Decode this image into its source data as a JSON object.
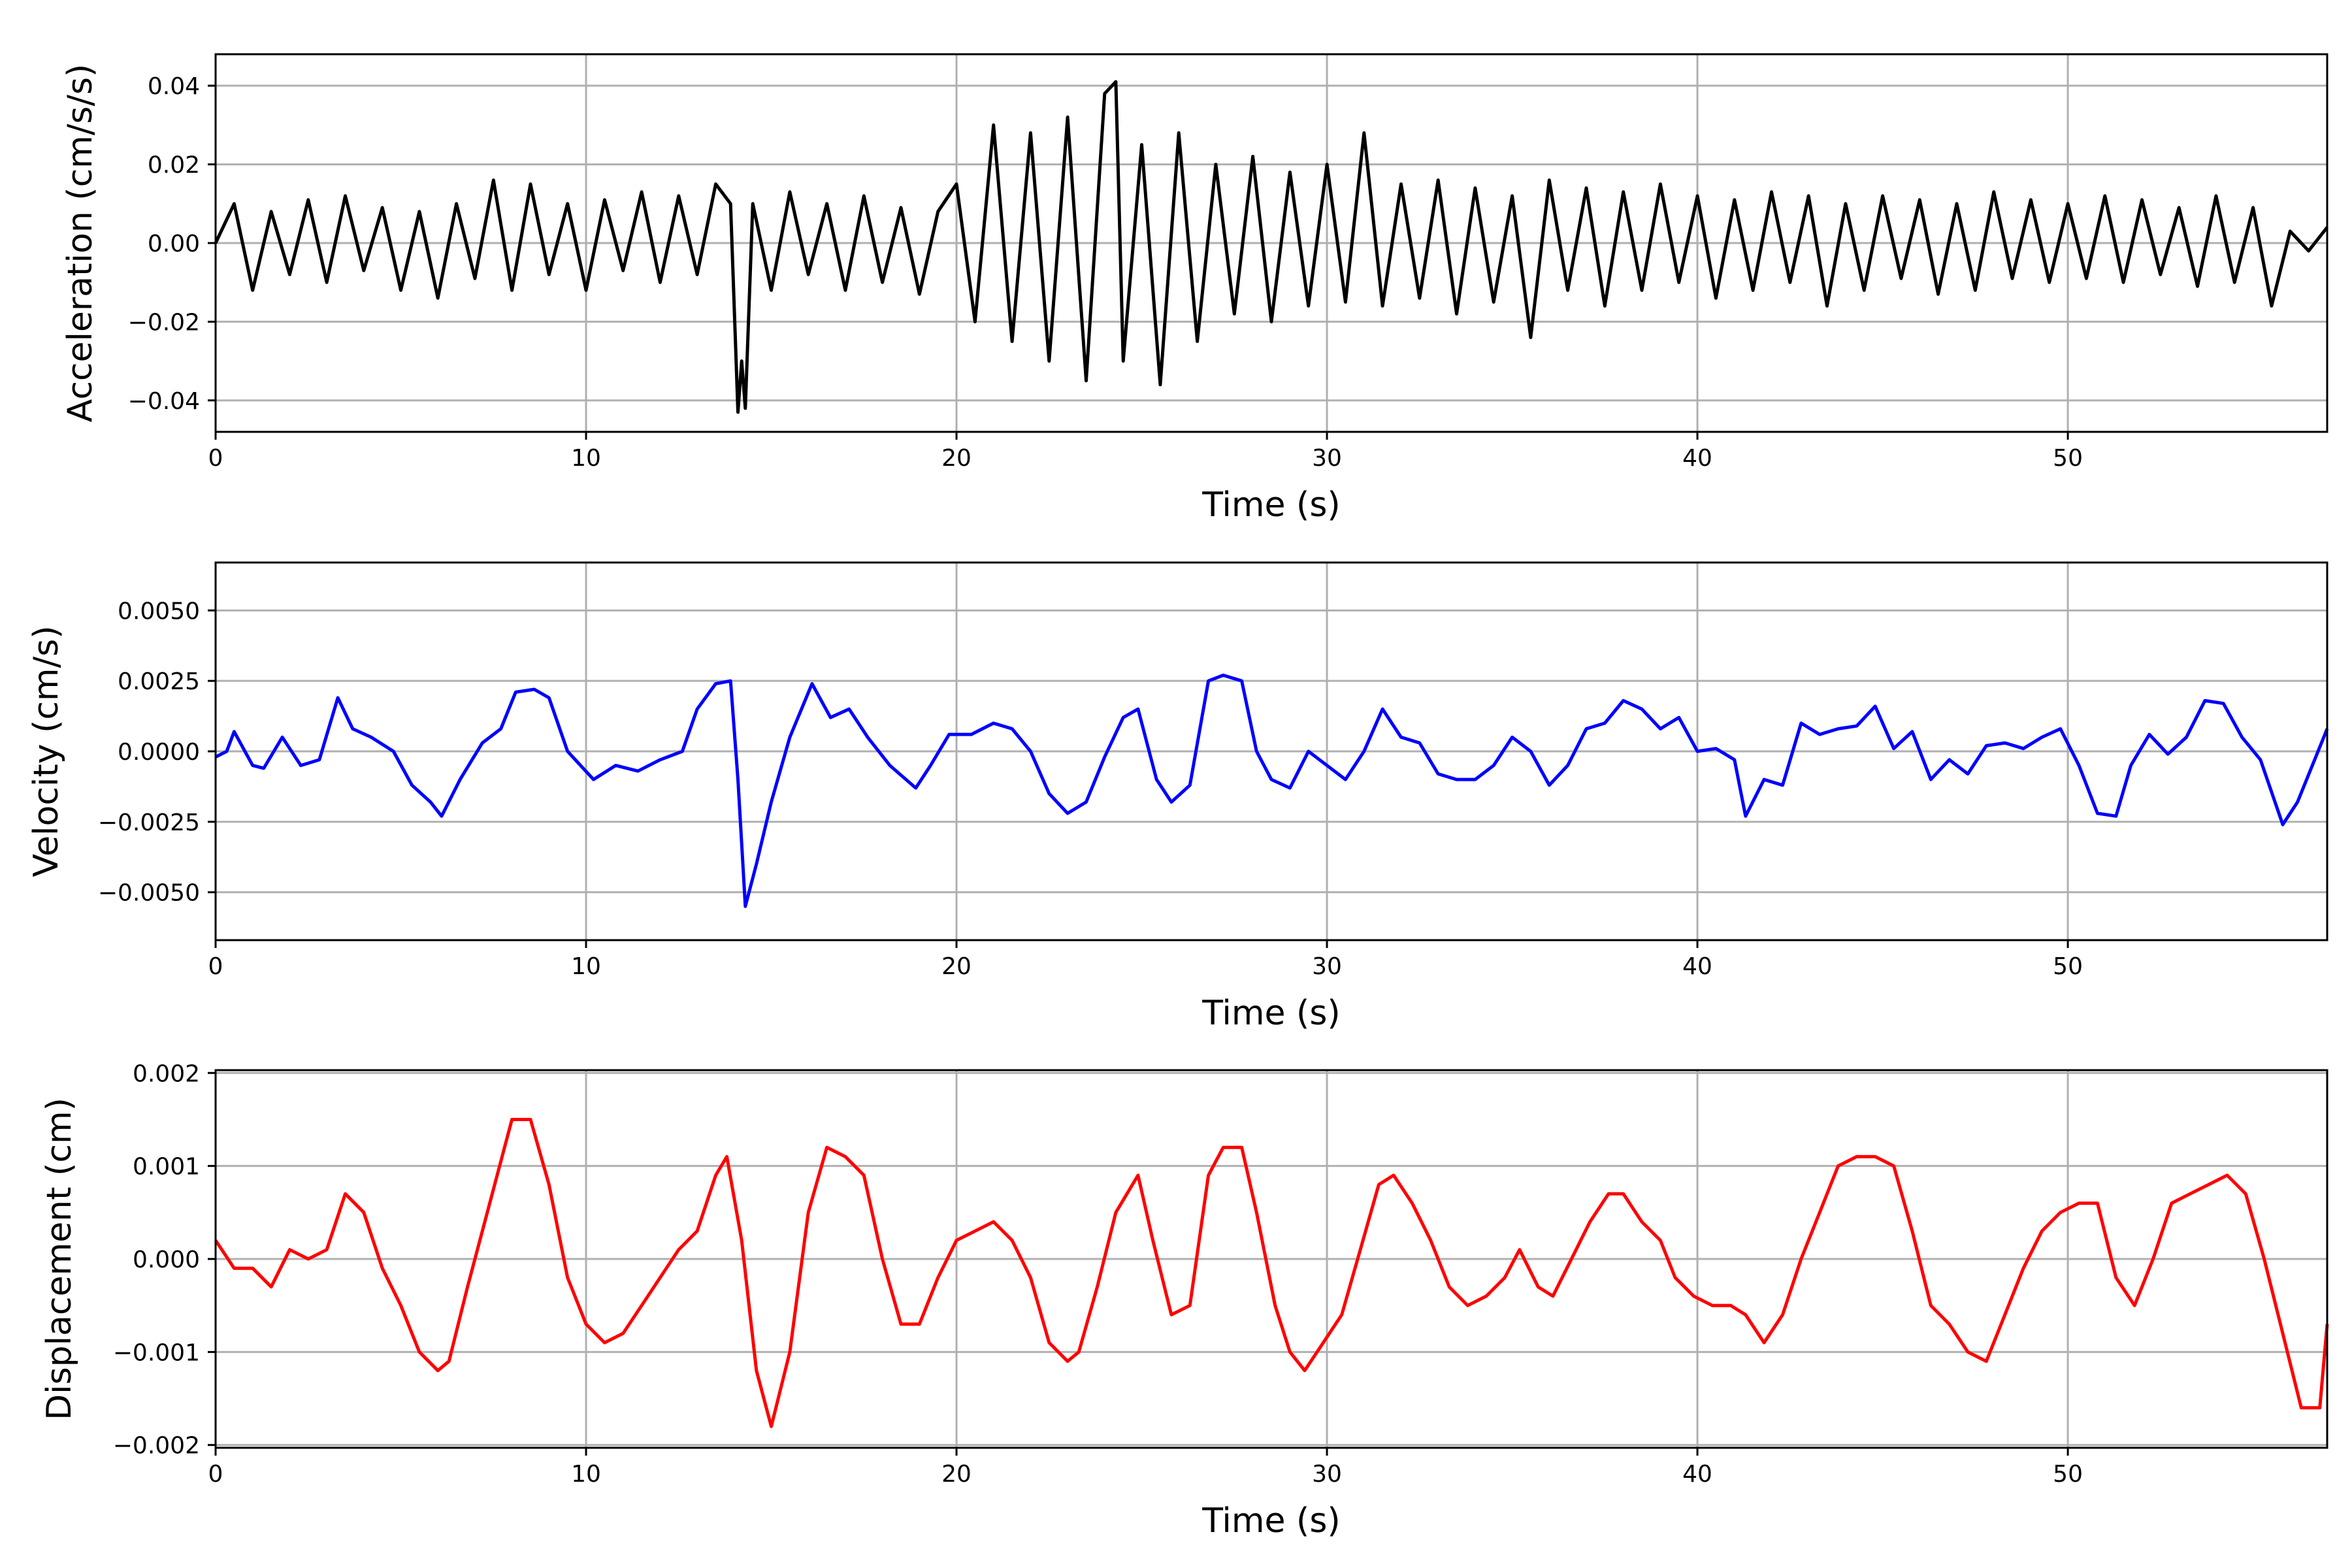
{
  "chart_data": [
    {
      "type": "line",
      "ylabel": "Acceleration (cm/s/s)",
      "xlabel": "Time (s)",
      "xlim": [
        0,
        57
      ],
      "ylim": [
        -0.048,
        0.048
      ],
      "x_ticks": [
        0,
        10,
        20,
        30,
        40,
        50
      ],
      "y_ticks": [
        -0.04,
        -0.02,
        0.0,
        0.02,
        0.04
      ],
      "y_tick_labels": [
        "−0.04",
        "−0.02",
        "0.00",
        "0.02",
        "0.04"
      ],
      "grid": true,
      "line_color": "#000000",
      "series": [
        {
          "x": [
            0,
            0.5,
            1,
            1.5,
            2,
            2.5,
            3,
            3.5,
            4,
            4.5,
            5,
            5.5,
            6,
            6.5,
            7,
            7.5,
            8,
            8.5,
            9,
            9.5,
            10,
            10.5,
            11,
            11.5,
            12,
            12.5,
            13,
            13.5,
            13.9,
            14.1,
            14.2,
            14.3,
            14.5,
            15,
            15.5,
            16,
            16.5,
            17,
            17.5,
            18,
            18.5,
            19,
            19.5,
            20,
            20.5,
            21,
            21.5,
            22,
            22.5,
            23,
            23.5,
            24,
            24.3,
            24.5,
            25,
            25.5,
            26,
            26.5,
            27,
            27.5,
            28,
            28.5,
            29,
            29.5,
            30,
            30.5,
            31,
            31.5,
            32,
            32.5,
            33,
            33.5,
            34,
            34.5,
            35,
            35.5,
            36,
            36.5,
            37,
            37.5,
            38,
            38.5,
            39,
            39.5,
            40,
            40.5,
            41,
            41.5,
            42,
            42.5,
            43,
            43.5,
            44,
            44.5,
            45,
            45.5,
            46,
            46.5,
            47,
            47.5,
            48,
            48.5,
            49,
            49.5,
            50,
            50.5,
            51,
            51.5,
            52,
            52.5,
            53,
            53.5,
            54,
            54.5,
            55,
            55.5,
            56,
            56.5,
            57
          ],
          "y": [
            0.0,
            0.01,
            -0.012,
            0.008,
            -0.008,
            0.011,
            -0.01,
            0.012,
            -0.007,
            0.009,
            -0.012,
            0.008,
            -0.014,
            0.01,
            -0.009,
            0.016,
            -0.012,
            0.015,
            -0.008,
            0.01,
            -0.012,
            0.011,
            -0.007,
            0.013,
            -0.01,
            0.012,
            -0.008,
            0.015,
            0.01,
            -0.043,
            -0.03,
            -0.042,
            0.01,
            -0.012,
            0.013,
            -0.008,
            0.01,
            -0.012,
            0.012,
            -0.01,
            0.009,
            -0.013,
            0.008,
            0.015,
            -0.02,
            0.03,
            -0.025,
            0.028,
            -0.03,
            0.032,
            -0.035,
            0.038,
            0.041,
            -0.03,
            0.025,
            -0.036,
            0.028,
            -0.025,
            0.02,
            -0.018,
            0.022,
            -0.02,
            0.018,
            -0.016,
            0.02,
            -0.015,
            0.028,
            -0.016,
            0.015,
            -0.014,
            0.016,
            -0.018,
            0.014,
            -0.015,
            0.012,
            -0.024,
            0.016,
            -0.012,
            0.014,
            -0.016,
            0.013,
            -0.012,
            0.015,
            -0.01,
            0.012,
            -0.014,
            0.011,
            -0.012,
            0.013,
            -0.01,
            0.012,
            -0.016,
            0.01,
            -0.012,
            0.012,
            -0.009,
            0.011,
            -0.013,
            0.01,
            -0.012,
            0.013,
            -0.009,
            0.011,
            -0.01,
            0.01,
            -0.009,
            0.012,
            -0.01,
            0.011,
            -0.008,
            0.009,
            -0.011,
            0.012,
            -0.01,
            0.009,
            -0.016,
            0.003,
            -0.002,
            0.004
          ]
        }
      ]
    },
    {
      "type": "line",
      "ylabel": "Velocity (cm/s)",
      "xlabel": "Time (s)",
      "xlim": [
        0,
        57
      ],
      "ylim": [
        -0.0067,
        0.0067
      ],
      "x_ticks": [
        0,
        10,
        20,
        30,
        40,
        50
      ],
      "y_ticks": [
        -0.005,
        -0.0025,
        0.0,
        0.0025,
        0.005
      ],
      "y_tick_labels": [
        "−0.0050",
        "−0.0025",
        "0.0000",
        "0.0025",
        "0.0050"
      ],
      "grid": true,
      "line_color": "#0000ff",
      "series": [
        {
          "x": [
            0,
            0.3,
            0.5,
            1.0,
            1.3,
            1.8,
            2.3,
            2.8,
            3.3,
            3.7,
            4.2,
            4.8,
            5.3,
            5.8,
            6.1,
            6.6,
            7.2,
            7.7,
            8.1,
            8.6,
            9.0,
            9.5,
            10.2,
            10.8,
            11.4,
            12.0,
            12.6,
            13.0,
            13.5,
            13.9,
            14.1,
            14.3,
            14.6,
            15.0,
            15.5,
            16.1,
            16.6,
            17.1,
            17.6,
            18.2,
            18.9,
            19.3,
            19.8,
            20.4,
            21.0,
            21.5,
            22.0,
            22.5,
            23.0,
            23.5,
            24.0,
            24.5,
            24.9,
            25.4,
            25.8,
            26.3,
            26.8,
            27.2,
            27.7,
            28.1,
            28.5,
            29.0,
            29.5,
            30.0,
            30.5,
            31.0,
            31.5,
            32.0,
            32.5,
            33.0,
            33.5,
            34.0,
            34.5,
            35.0,
            35.5,
            36.0,
            36.5,
            37.0,
            37.5,
            38.0,
            38.5,
            39.0,
            39.5,
            40.0,
            40.5,
            41.0,
            41.3,
            41.8,
            42.3,
            42.8,
            43.3,
            43.8,
            44.3,
            44.8,
            45.3,
            45.8,
            46.3,
            46.8,
            47.3,
            47.8,
            48.3,
            48.8,
            49.3,
            49.8,
            50.3,
            50.8,
            51.3,
            51.7,
            52.2,
            52.7,
            53.2,
            53.7,
            54.2,
            54.7,
            55.2,
            55.8,
            56.2,
            56.6,
            57.0
          ],
          "y": [
            -0.0002,
            0.0,
            0.0007,
            -0.0005,
            -0.0006,
            0.0005,
            -0.0005,
            -0.0003,
            0.0019,
            0.0008,
            0.0005,
            0.0,
            -0.0012,
            -0.0018,
            -0.0023,
            -0.001,
            0.0003,
            0.0008,
            0.0021,
            0.0022,
            0.0019,
            0.0,
            -0.001,
            -0.0005,
            -0.0007,
            -0.0003,
            0.0,
            0.0015,
            0.0024,
            0.0025,
            -0.001,
            -0.0055,
            -0.004,
            -0.0018,
            0.0005,
            0.0024,
            0.0012,
            0.0015,
            0.0005,
            -0.0005,
            -0.0013,
            -0.0005,
            0.0006,
            0.0006,
            0.001,
            0.0008,
            0.0,
            -0.0015,
            -0.0022,
            -0.0018,
            -0.0002,
            0.0012,
            0.0015,
            -0.001,
            -0.0018,
            -0.0012,
            0.0025,
            0.0027,
            0.0025,
            0.0,
            -0.001,
            -0.0013,
            0.0,
            -0.0005,
            -0.001,
            0.0,
            0.0015,
            0.0005,
            0.0003,
            -0.0008,
            -0.001,
            -0.001,
            -0.0005,
            0.0005,
            0.0,
            -0.0012,
            -0.0005,
            0.0008,
            0.001,
            0.0018,
            0.0015,
            0.0008,
            0.0012,
            0.0,
            0.0001,
            -0.0003,
            -0.0023,
            -0.001,
            -0.0012,
            0.001,
            0.0006,
            0.0008,
            0.0009,
            0.0016,
            0.0001,
            0.0007,
            -0.001,
            -0.0003,
            -0.0008,
            0.0002,
            0.0003,
            0.0001,
            0.0005,
            0.0008,
            -0.0005,
            -0.0022,
            -0.0023,
            -0.0005,
            0.0006,
            -0.0001,
            0.0005,
            0.0018,
            0.0017,
            0.0005,
            -0.0003,
            -0.0026,
            -0.0018,
            -0.0005,
            0.0008
          ]
        }
      ]
    },
    {
      "type": "line",
      "ylabel": "Displacement (cm)",
      "xlabel": "Time (s)",
      "xlim": [
        0,
        57
      ],
      "ylim": [
        -0.00203,
        0.00203
      ],
      "x_ticks": [
        0,
        10,
        20,
        30,
        40,
        50
      ],
      "y_ticks": [
        -0.002,
        -0.001,
        0.0,
        0.001,
        0.002
      ],
      "y_tick_labels": [
        "−0.002",
        "−0.001",
        "0.000",
        "0.001",
        "0.002"
      ],
      "grid": true,
      "line_color": "#ff0000",
      "series": [
        {
          "x": [
            0,
            0.5,
            1.0,
            1.5,
            2.0,
            2.5,
            3.0,
            3.5,
            4.0,
            4.5,
            5.0,
            5.5,
            6.0,
            6.3,
            6.8,
            7.4,
            8.0,
            8.5,
            9.0,
            9.5,
            10.0,
            10.5,
            11.0,
            11.5,
            12.0,
            12.5,
            13.0,
            13.5,
            13.8,
            14.2,
            14.6,
            15.0,
            15.5,
            16.0,
            16.5,
            17.0,
            17.5,
            18.0,
            18.5,
            19.0,
            19.5,
            20.0,
            20.5,
            21.0,
            21.5,
            22.0,
            22.5,
            23.0,
            23.3,
            23.8,
            24.3,
            24.9,
            25.3,
            25.8,
            26.3,
            26.8,
            27.2,
            27.7,
            28.1,
            28.6,
            29.0,
            29.4,
            29.9,
            30.4,
            30.9,
            31.4,
            31.8,
            32.3,
            32.8,
            33.3,
            33.8,
            34.3,
            34.8,
            35.2,
            35.7,
            36.1,
            36.6,
            37.1,
            37.6,
            38.0,
            38.5,
            39.0,
            39.4,
            39.9,
            40.4,
            40.9,
            41.3,
            41.8,
            42.3,
            42.8,
            43.3,
            43.8,
            44.3,
            44.8,
            45.3,
            45.8,
            46.3,
            46.8,
            47.3,
            47.8,
            48.3,
            48.8,
            49.3,
            49.8,
            50.3,
            50.8,
            51.3,
            51.8,
            52.3,
            52.8,
            53.3,
            53.8,
            54.3,
            54.8,
            55.3,
            55.8,
            56.3,
            56.8,
            57.0
          ],
          "y": [
            0.0002,
            -0.0001,
            -0.0001,
            -0.0003,
            0.0001,
            0.0,
            0.0001,
            0.0007,
            0.0005,
            -0.0001,
            -0.0005,
            -0.001,
            -0.0012,
            -0.0011,
            -0.0003,
            0.0006,
            0.0015,
            0.0015,
            0.0008,
            -0.0002,
            -0.0007,
            -0.0009,
            -0.0008,
            -0.0005,
            -0.0002,
            0.0001,
            0.0003,
            0.0009,
            0.0011,
            0.0002,
            -0.0012,
            -0.0018,
            -0.001,
            0.0005,
            0.0012,
            0.0011,
            0.0009,
            0.0,
            -0.0007,
            -0.0007,
            -0.0002,
            0.0002,
            0.0003,
            0.0004,
            0.0002,
            -0.0002,
            -0.0009,
            -0.0011,
            -0.001,
            -0.0003,
            0.0005,
            0.0009,
            0.0002,
            -0.0006,
            -0.0005,
            0.0009,
            0.0012,
            0.0012,
            0.0005,
            -0.0005,
            -0.001,
            -0.0012,
            -0.0009,
            -0.0006,
            0.0001,
            0.0008,
            0.0009,
            0.0006,
            0.0002,
            -0.0003,
            -0.0005,
            -0.0004,
            -0.0002,
            0.0001,
            -0.0003,
            -0.0004,
            0.0,
            0.0004,
            0.0007,
            0.0007,
            0.0004,
            0.0002,
            -0.0002,
            -0.0004,
            -0.0005,
            -0.0005,
            -0.0006,
            -0.0009,
            -0.0006,
            0.0,
            0.0005,
            0.001,
            0.0011,
            0.0011,
            0.001,
            0.0003,
            -0.0005,
            -0.0007,
            -0.001,
            -0.0011,
            -0.0006,
            -0.0001,
            0.0003,
            0.0005,
            0.0006,
            0.0006,
            -0.0002,
            -0.0005,
            0.0,
            0.0006,
            0.0007,
            0.0008,
            0.0009,
            0.0007,
            0.0,
            -0.0008,
            -0.0016,
            -0.0016,
            -0.0007
          ]
        }
      ]
    }
  ]
}
